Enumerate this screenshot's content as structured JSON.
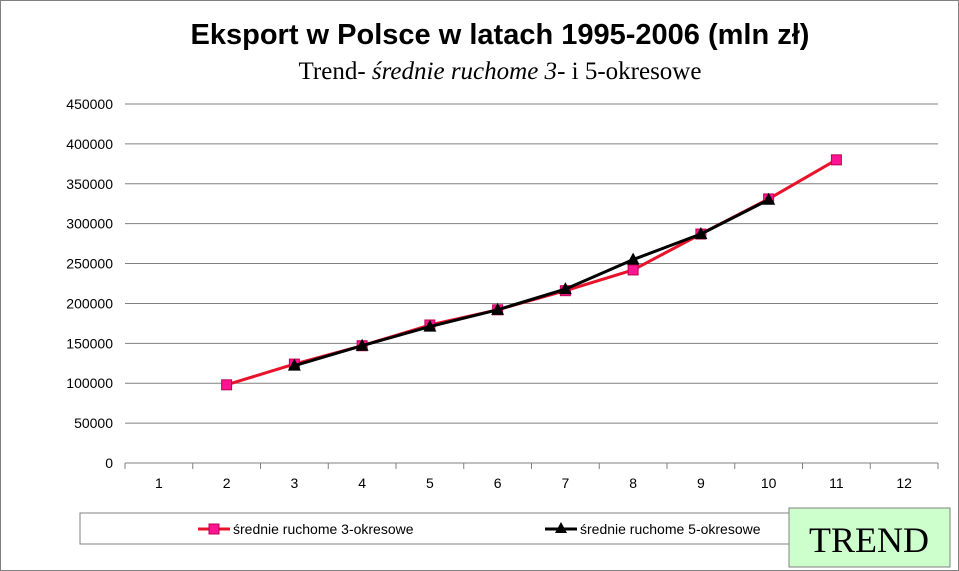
{
  "chart_data": {
    "type": "line",
    "title": "Eksport w Polsce w latach 1995-2006 (mln zł)",
    "subtitle": {
      "part1": "Trend- ",
      "part2": "średnie ruchome 3",
      "part3": "- i 5-okresowe"
    },
    "categories": [
      "1",
      "2",
      "3",
      "4",
      "5",
      "6",
      "7",
      "8",
      "9",
      "10",
      "11",
      "12"
    ],
    "ylim": [
      0,
      450000
    ],
    "yticks": [
      "0",
      "50000",
      "100000",
      "150000",
      "200000",
      "250000",
      "300000",
      "350000",
      "400000",
      "450000"
    ],
    "grid": true,
    "legend_position": "bottom",
    "series": [
      {
        "name": "średnie ruchome 3-okresowe",
        "color": "#e8122a",
        "marker": "square",
        "marker_color": "#ff1493",
        "values": [
          null,
          98000,
          124000,
          147000,
          173000,
          192000,
          216000,
          242000,
          287000,
          331000,
          380000,
          null
        ]
      },
      {
        "name": "średnie ruchome 5-okresowe",
        "color": "#000000",
        "marker": "triangle",
        "marker_color": "#000000",
        "values": [
          null,
          null,
          122000,
          147000,
          171000,
          192000,
          218000,
          255000,
          287000,
          330000,
          null,
          null
        ]
      }
    ]
  },
  "badge": {
    "text": "TREND",
    "background": "#ccffcc"
  }
}
